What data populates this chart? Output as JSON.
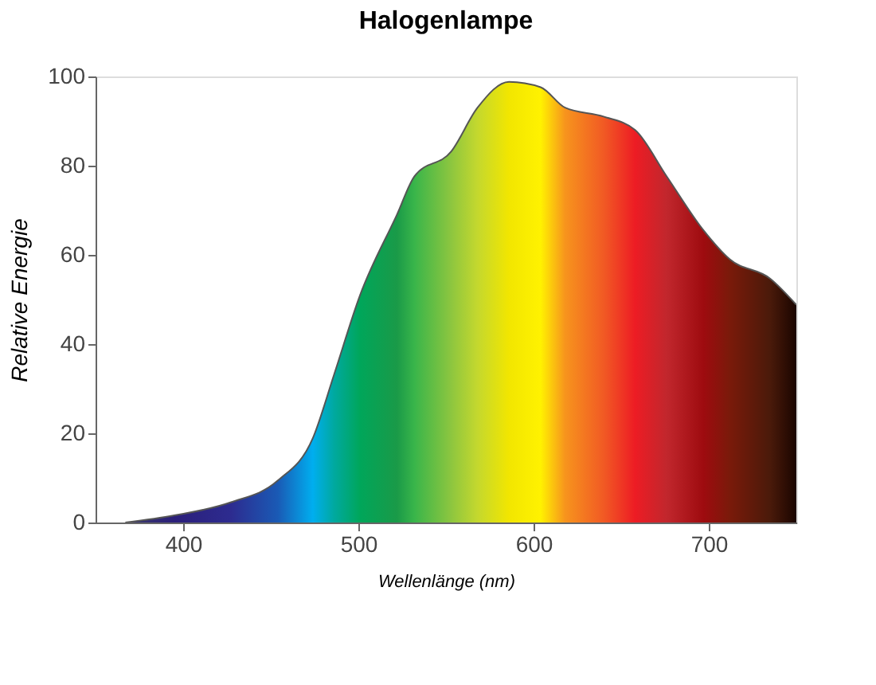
{
  "chart_data": {
    "type": "area",
    "title": "Halogenlampe",
    "xlabel": "Wellenlänge (nm)",
    "ylabel": "Relative Energie",
    "x": [
      367,
      395,
      427,
      454,
      474,
      486,
      501,
      522,
      532,
      553,
      568,
      586,
      604,
      618,
      640,
      658,
      676,
      697,
      712,
      735,
      750
    ],
    "values": [
      0,
      1.6,
      4.5,
      9.4,
      18.9,
      33,
      51,
      69,
      77.6,
      83.2,
      93,
      98.8,
      97.6,
      93,
      91,
      88,
      77.6,
      65.5,
      59,
      54.7,
      48.8
    ],
    "colors": [
      "#3a3a6a",
      "#2b1f7a",
      "#2d2b8f",
      "#1a5ab5",
      "#00aeef",
      "#00a9a0",
      "#00a65a",
      "#1a9a48",
      "#39b54a",
      "#8dc63f",
      "#c4d82e",
      "#f2e600",
      "#fff200",
      "#f7941d",
      "#f15a24",
      "#ed1c24",
      "#c1272d",
      "#9e0b0f",
      "#7a1a0a",
      "#4a1a0a",
      "#1a0500"
    ],
    "xlim": [
      350,
      750
    ],
    "xticks": [
      400,
      500,
      600,
      700
    ],
    "ylim": [
      0,
      100
    ],
    "yticks": [
      0,
      20,
      40,
      60,
      80,
      100
    ],
    "grid": false
  }
}
